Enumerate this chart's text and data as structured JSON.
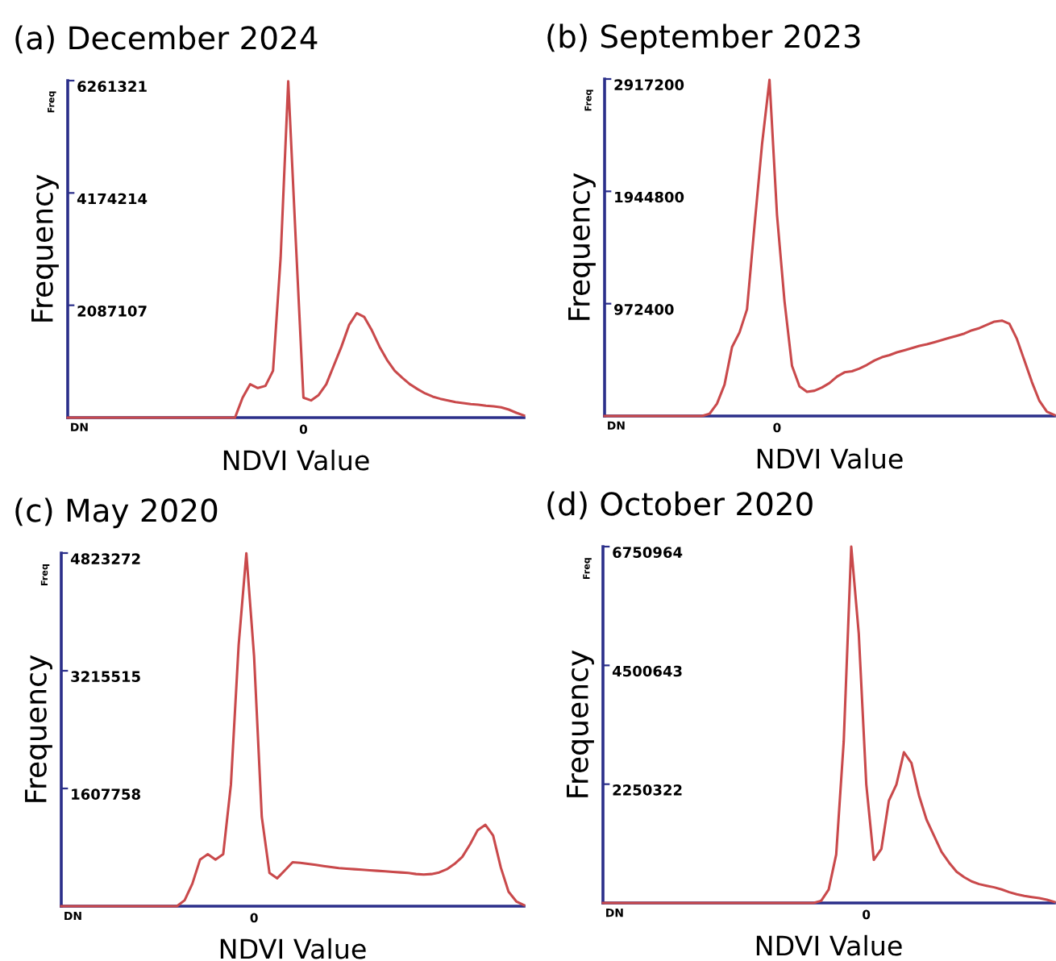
{
  "chart_data": [
    {
      "type": "line",
      "title": "(a) December 2024",
      "xlabel": "NDVI Value",
      "ylabel": "Frequency",
      "annotations": [
        "Freq",
        "DN"
      ],
      "categories": [
        null,
        null,
        null,
        null,
        null,
        null,
        null,
        null,
        null,
        null,
        null,
        null,
        null,
        null,
        null,
        null,
        null,
        null,
        null,
        null,
        null,
        null,
        null,
        null,
        null,
        null,
        null,
        null,
        null,
        null,
        null,
        "0",
        null,
        null,
        null,
        null,
        null,
        null,
        null,
        null,
        null,
        null,
        null,
        null,
        null,
        null,
        null,
        null,
        null,
        null,
        null,
        null,
        null,
        null,
        null,
        null,
        null,
        null,
        null,
        null,
        null
      ],
      "ylim": [
        0,
        6261321
      ],
      "yticks": [
        2087107,
        4174214,
        6261321
      ],
      "grid": false,
      "marker": "none",
      "line_style": "solid",
      "series": [
        {
          "color": "#c9494b",
          "values": [
            0,
            0,
            0,
            0,
            0,
            0,
            0,
            0,
            0,
            0,
            0,
            0,
            0,
            0,
            0,
            0,
            0,
            0,
            0,
            0,
            0,
            0,
            0,
            370000,
            620000,
            550000,
            590000,
            870000,
            2970000,
            6250000,
            3265000,
            370000,
            320000,
            420000,
            620000,
            970000,
            1320000,
            1720000,
            1940000,
            1870000,
            1620000,
            1320000,
            1070000,
            870000,
            740000,
            620000,
            530000,
            450000,
            390000,
            350000,
            320000,
            290000,
            270000,
            250000,
            240000,
            220000,
            210000,
            190000,
            150000,
            90000,
            40000
          ]
        }
      ]
    },
    {
      "type": "line",
      "title": "(b) September 2023",
      "xlabel": "NDVI Value",
      "ylabel": "Frequency",
      "annotations": [
        "Freq",
        "DN"
      ],
      "categories": [
        null,
        null,
        null,
        null,
        null,
        null,
        null,
        null,
        null,
        null,
        null,
        null,
        null,
        null,
        null,
        null,
        null,
        null,
        null,
        null,
        null,
        null,
        null,
        "0",
        null,
        null,
        null,
        null,
        null,
        null,
        null,
        null,
        null,
        null,
        null,
        null,
        null,
        null,
        null,
        null,
        null,
        null,
        null,
        null,
        null,
        null,
        null,
        null,
        null,
        null,
        null,
        null,
        null,
        null,
        null,
        null,
        null,
        null,
        null,
        null,
        null
      ],
      "ylim": [
        0,
        2917200
      ],
      "yticks": [
        972400,
        1944800,
        2917200
      ],
      "grid": false,
      "marker": "none",
      "line_style": "solid",
      "series": [
        {
          "color": "#c9494b",
          "values": [
            0,
            0,
            0,
            0,
            0,
            0,
            0,
            0,
            0,
            0,
            0,
            0,
            0,
            0,
            19000,
            107000,
            271000,
            597000,
            723000,
            924000,
            1648000,
            2350000,
            2910000,
            1741000,
            994000,
            434000,
            257000,
            210000,
            219000,
            247000,
            285000,
            341000,
            378000,
            387000,
            411000,
            443000,
            481000,
            509000,
            527000,
            551000,
            569000,
            588000,
            607000,
            621000,
            639000,
            658000,
            677000,
            695000,
            714000,
            742000,
            761000,
            789000,
            817000,
            826000,
            798000,
            667000,
            481000,
            294000,
            131000,
            37000,
            9000
          ]
        }
      ]
    },
    {
      "type": "line",
      "title": "(c) May 2020",
      "xlabel": "NDVI Value",
      "ylabel": "Frequency",
      "annotations": [
        "Freq",
        "DN"
      ],
      "categories": [
        null,
        null,
        null,
        null,
        null,
        null,
        null,
        null,
        null,
        null,
        null,
        null,
        null,
        null,
        null,
        null,
        null,
        null,
        null,
        null,
        null,
        null,
        null,
        null,
        null,
        "0",
        null,
        null,
        null,
        null,
        null,
        null,
        null,
        null,
        null,
        null,
        null,
        null,
        null,
        null,
        null,
        null,
        null,
        null,
        null,
        null,
        null,
        null,
        null,
        null,
        null,
        null,
        null,
        null,
        null,
        null,
        null,
        null,
        null,
        null,
        null
      ],
      "ylim": [
        0,
        4823272
      ],
      "yticks": [
        1607758,
        3215515,
        4823272
      ],
      "grid": false,
      "marker": "none",
      "line_style": "solid",
      "series": [
        {
          "color": "#c9494b",
          "values": [
            0,
            0,
            0,
            0,
            0,
            0,
            0,
            0,
            0,
            0,
            0,
            0,
            0,
            0,
            0,
            0,
            81000,
            307000,
            637000,
            710000,
            637000,
            710000,
            1661000,
            3564000,
            4820000,
            3418000,
            1222000,
            454000,
            381000,
            490000,
            600000,
            593000,
            578000,
            564000,
            549000,
            534000,
            520000,
            512000,
            505000,
            498000,
            490000,
            483000,
            476000,
            468000,
            461000,
            454000,
            439000,
            432000,
            439000,
            461000,
            505000,
            578000,
            673000,
            842000,
            1039000,
            1112000,
            966000,
            527000,
            198000,
            66000,
            15000
          ]
        }
      ]
    },
    {
      "type": "line",
      "title": "(d) October 2020",
      "xlabel": "NDVI Value",
      "ylabel": "Frequency",
      "annotations": [
        "Freq",
        "DN"
      ],
      "categories": [
        null,
        null,
        null,
        null,
        null,
        null,
        null,
        null,
        null,
        null,
        null,
        null,
        null,
        null,
        null,
        null,
        null,
        null,
        null,
        null,
        null,
        null,
        null,
        null,
        null,
        null,
        null,
        null,
        null,
        null,
        null,
        null,
        null,
        null,
        null,
        "0",
        null,
        null,
        null,
        null,
        null,
        null,
        null,
        null,
        null,
        null,
        null,
        null,
        null,
        null,
        null,
        null,
        null,
        null,
        null,
        null,
        null,
        null,
        null,
        null,
        null
      ],
      "ylim": [
        0,
        6750964
      ],
      "yticks": [
        2250322,
        4500643,
        6750964
      ],
      "grid": false,
      "marker": "none",
      "line_style": "solid",
      "series": [
        {
          "color": "#c9494b",
          "values": [
            0,
            0,
            0,
            0,
            0,
            0,
            0,
            0,
            0,
            0,
            0,
            0,
            0,
            0,
            0,
            0,
            0,
            0,
            0,
            0,
            0,
            0,
            0,
            0,
            0,
            0,
            0,
            0,
            0,
            41000,
            255000,
            918000,
            3059000,
            6750000,
            5100000,
            2244000,
            816000,
            1020000,
            1938000,
            2244000,
            2855000,
            2651000,
            2040000,
            1581000,
            1275000,
            969000,
            765000,
            591000,
            489000,
            408000,
            357000,
            326000,
            296000,
            255000,
            204000,
            163000,
            133000,
            112000,
            92000,
            61000,
            20000
          ]
        }
      ]
    }
  ]
}
